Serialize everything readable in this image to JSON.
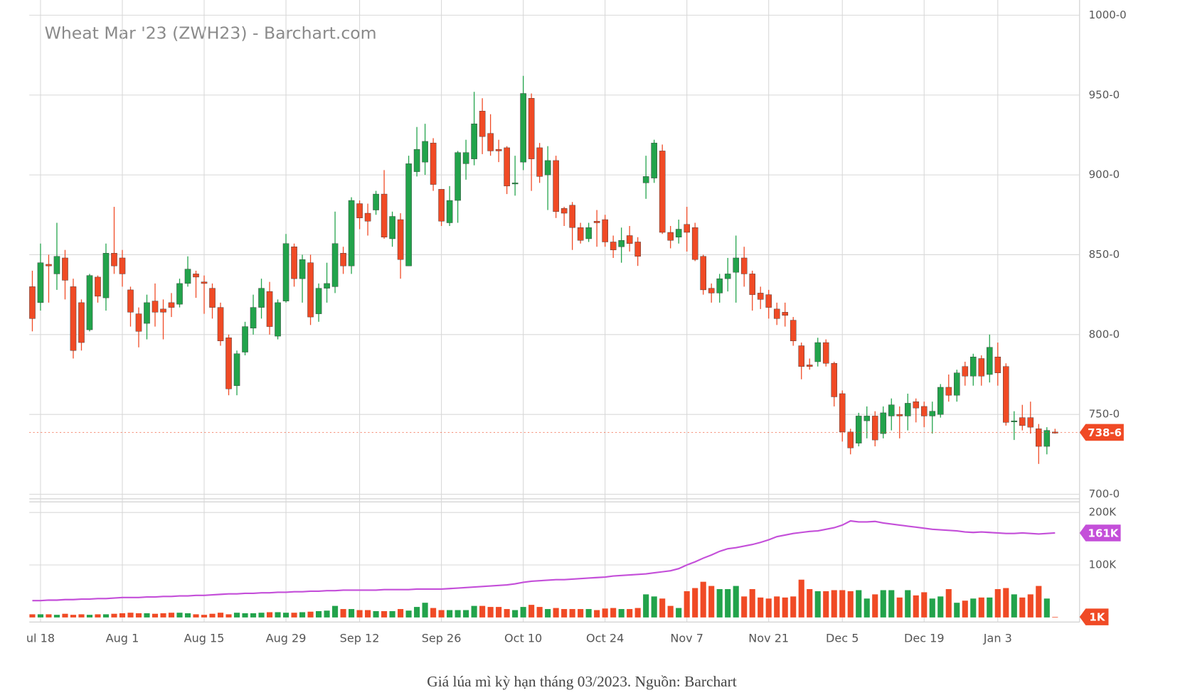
{
  "chart_data": [
    {
      "type": "candlestick",
      "title": "Wheat Mar '23 (ZWH23) - Barchart.com",
      "categories": [
        null,
        "ul 18",
        null,
        null,
        null,
        null,
        null,
        null,
        null,
        null,
        null,
        "Aug 1",
        null,
        null,
        null,
        null,
        null,
        null,
        null,
        null,
        null,
        "Aug 15",
        null,
        null,
        null,
        null,
        null,
        null,
        null,
        null,
        null,
        "Aug 29",
        null,
        null,
        null,
        null,
        null,
        null,
        null,
        null,
        "Sep 12",
        null,
        null,
        null,
        null,
        null,
        null,
        null,
        null,
        null,
        "Sep 26",
        null,
        null,
        null,
        null,
        null,
        null,
        null,
        null,
        null,
        "Oct 10",
        null,
        null,
        null,
        null,
        null,
        null,
        null,
        null,
        null,
        "Oct 24",
        null,
        null,
        null,
        null,
        null,
        null,
        null,
        null,
        null,
        "Nov 7",
        null,
        null,
        null,
        null,
        null,
        null,
        null,
        null,
        null,
        "Nov 21",
        null,
        null,
        null,
        null,
        null,
        null,
        null,
        null,
        "Dec 5",
        null,
        null,
        null,
        null,
        null,
        null,
        null,
        null,
        null,
        "Dec 19",
        null,
        null,
        null,
        null,
        null,
        null,
        null,
        null,
        "Jan 3",
        null,
        null,
        null,
        null,
        null,
        null,
        null
      ],
      "open": [
        830,
        820,
        844,
        838,
        848,
        830,
        820,
        803,
        836,
        823,
        851,
        848,
        828,
        813,
        807,
        821,
        816,
        820,
        819,
        832,
        838,
        833,
        829,
        817,
        798,
        768,
        789,
        804,
        817,
        827,
        799,
        821,
        855,
        835,
        845,
        813,
        829,
        830,
        851,
        843,
        882,
        876,
        878,
        888,
        860,
        872,
        843,
        902,
        908,
        920,
        891,
        870,
        884,
        907,
        910,
        940,
        926,
        916,
        917,
        895,
        908,
        948,
        917,
        900,
        909,
        879,
        881,
        867,
        860,
        871,
        872,
        858,
        855,
        862,
        858,
        895,
        898,
        915,
        864,
        861,
        869,
        867,
        849,
        829,
        826,
        835,
        839,
        848,
        838,
        826,
        825,
        816,
        814,
        809,
        793,
        781,
        783,
        795,
        782,
        763,
        739,
        732,
        746,
        749,
        738,
        749,
        750,
        749,
        758,
        755,
        749,
        750,
        767,
        762,
        780,
        774,
        785,
        775,
        786,
        780,
        746,
        748,
        748,
        741,
        730,
        739
      ],
      "high": [
        840,
        857,
        850,
        870,
        853,
        835,
        822,
        838,
        837,
        857,
        880,
        853,
        830,
        817,
        825,
        832,
        822,
        826,
        835,
        849,
        840,
        837,
        832,
        820,
        800,
        790,
        808,
        825,
        835,
        833,
        822,
        863,
        857,
        850,
        850,
        832,
        845,
        877,
        855,
        886,
        884,
        882,
        890,
        903,
        877,
        876,
        912,
        930,
        932,
        923,
        891,
        893,
        915,
        922,
        952,
        948,
        938,
        922,
        918,
        912,
        962,
        951,
        920,
        918,
        912,
        880,
        883,
        870,
        870,
        878,
        875,
        862,
        867,
        868,
        861,
        912,
        922,
        919,
        868,
        872,
        880,
        870,
        850,
        832,
        838,
        848,
        862,
        855,
        840,
        830,
        828,
        820,
        820,
        811,
        795,
        785,
        798,
        797,
        783,
        765,
        741,
        751,
        755,
        752,
        755,
        760,
        755,
        763,
        760,
        758,
        758,
        769,
        775,
        778,
        783,
        788,
        787,
        800,
        795,
        782,
        752,
        756,
        758,
        744,
        742,
        741
      ],
      "low": [
        802,
        815,
        820,
        828,
        822,
        785,
        790,
        802,
        820,
        815,
        838,
        830,
        805,
        792,
        797,
        805,
        797,
        811,
        817,
        830,
        823,
        813,
        810,
        793,
        762,
        762,
        787,
        800,
        810,
        800,
        797,
        820,
        830,
        820,
        806,
        808,
        820,
        826,
        838,
        838,
        866,
        862,
        875,
        860,
        855,
        835,
        843,
        899,
        900,
        890,
        868,
        868,
        870,
        897,
        906,
        913,
        912,
        908,
        888,
        887,
        903,
        890,
        895,
        878,
        873,
        868,
        853,
        857,
        858,
        855,
        855,
        848,
        845,
        852,
        843,
        885,
        895,
        863,
        854,
        857,
        852,
        846,
        825,
        820,
        820,
        827,
        820,
        830,
        815,
        816,
        810,
        806,
        805,
        793,
        772,
        778,
        780,
        780,
        755,
        733,
        725,
        730,
        735,
        730,
        735,
        740,
        735,
        740,
        745,
        742,
        738,
        748,
        758,
        758,
        768,
        768,
        768,
        770,
        768,
        743,
        734,
        740,
        738,
        719,
        725,
        738
      ],
      "close": [
        810,
        845,
        843,
        849,
        834,
        790,
        795,
        837,
        824,
        851,
        843,
        838,
        814,
        802,
        820,
        814,
        814,
        817,
        832,
        841,
        836,
        832,
        817,
        796,
        766,
        788,
        805,
        817,
        829,
        805,
        820,
        857,
        835,
        847,
        811,
        829,
        832,
        857,
        843,
        884,
        873,
        871,
        888,
        861,
        874,
        847,
        907,
        916,
        921,
        894,
        871,
        884,
        914,
        914,
        932,
        924,
        915,
        915,
        893,
        895,
        951,
        910,
        899,
        909,
        877,
        876,
        867,
        859,
        867,
        870,
        858,
        853,
        859,
        857,
        849,
        899,
        920,
        864,
        859,
        866,
        864,
        847,
        828,
        826,
        835,
        838,
        848,
        838,
        825,
        822,
        817,
        810,
        812,
        796,
        780,
        780,
        795,
        782,
        761,
        739,
        729,
        749,
        749,
        734,
        751,
        756,
        749,
        757,
        754,
        749,
        752,
        767,
        762,
        776,
        774,
        786,
        774,
        792,
        776,
        745,
        746,
        743,
        742,
        730,
        740,
        738.75
      ],
      "up_color": "#22a34b",
      "down_color": "#f04a25",
      "ylim": [
        700,
        1000
      ],
      "yticks": [
        {
          "value": 700,
          "label": "700-0"
        },
        {
          "value": 750,
          "label": "750-0"
        },
        {
          "value": 800,
          "label": "800-0"
        },
        {
          "value": 850,
          "label": "850-0"
        },
        {
          "value": 900,
          "label": "900-0"
        },
        {
          "value": 950,
          "label": "950-0"
        },
        {
          "value": 1000,
          "label": "1000-0"
        }
      ],
      "grid": true,
      "last_label": {
        "value": 738.75,
        "label": "738-6"
      }
    },
    {
      "type": "volume",
      "series": [
        {
          "kind": "bar",
          "values": [
            6000,
            6000,
            6000,
            5000,
            7000,
            5000,
            6000,
            5000,
            6000,
            6000,
            7000,
            8000,
            9000,
            8000,
            8000,
            7000,
            8000,
            9000,
            9000,
            8000,
            6000,
            5000,
            7000,
            9000,
            6000,
            9000,
            8000,
            8000,
            9000,
            10000,
            10000,
            9000,
            9000,
            10000,
            11000,
            12000,
            13000,
            22000,
            16000,
            16000,
            14000,
            14000,
            12000,
            12000,
            12000,
            16000,
            13000,
            20000,
            28000,
            18000,
            14000,
            14000,
            14000,
            14000,
            22000,
            22000,
            20000,
            20000,
            16000,
            14000,
            20000,
            24000,
            20000,
            16000,
            18000,
            16000,
            16000,
            16000,
            16000,
            14000,
            17000,
            18000,
            16000,
            16000,
            18000,
            44000,
            40000,
            36000,
            22000,
            18000,
            50000,
            56000,
            68000,
            60000,
            54000,
            54000,
            60000,
            40000,
            54000,
            38000,
            36000,
            40000,
            38000,
            40000,
            72000,
            54000,
            50000,
            50000,
            52000,
            52000,
            50000,
            52000,
            36000,
            44000,
            52000,
            52000,
            38000,
            52000,
            42000,
            48000,
            36000,
            40000,
            54000,
            28000,
            32000,
            36000,
            38000,
            38000,
            54000,
            56000,
            44000,
            38000,
            44000,
            60000,
            36000,
            1000
          ],
          "last_label": {
            "value": 1000,
            "label": "1K"
          },
          "color": "#f04a25"
        },
        {
          "kind": "line",
          "color": "#c44fd9",
          "values": [
            32000,
            32000,
            33000,
            33000,
            34000,
            34000,
            35000,
            35000,
            36000,
            36000,
            37000,
            38000,
            38000,
            38000,
            39000,
            39000,
            40000,
            40000,
            41000,
            41000,
            42000,
            42000,
            43000,
            44000,
            45000,
            45000,
            46000,
            46000,
            47000,
            47000,
            48000,
            48000,
            49000,
            49000,
            50000,
            50000,
            51000,
            51000,
            52000,
            52000,
            52000,
            52000,
            52000,
            53000,
            53000,
            53000,
            53000,
            54000,
            54000,
            54000,
            54000,
            55000,
            56000,
            57000,
            58000,
            59000,
            60000,
            61000,
            62000,
            64000,
            67000,
            69000,
            70000,
            71000,
            72000,
            72000,
            73000,
            74000,
            75000,
            76000,
            77000,
            79000,
            80000,
            81000,
            82000,
            83000,
            85000,
            87000,
            89000,
            93000,
            100000,
            106000,
            113000,
            119000,
            126000,
            131000,
            133000,
            136000,
            139000,
            143000,
            148000,
            154000,
            157000,
            160000,
            162000,
            164000,
            165000,
            168000,
            171000,
            176000,
            184000,
            182000,
            182000,
            183000,
            180000,
            178000,
            176000,
            174000,
            172000,
            170000,
            168000,
            167000,
            166000,
            165000,
            163000,
            162000,
            163000,
            162000,
            161000,
            160000,
            160000,
            161000,
            160000,
            159000,
            160000,
            161000
          ],
          "last_label": {
            "value": 161000,
            "label": "161K"
          }
        }
      ],
      "ylim": [
        0,
        200000
      ],
      "yticks": [
        {
          "value": 100000,
          "label": "100K"
        },
        {
          "value": 200000,
          "label": "200K"
        }
      ],
      "grid": true
    }
  ],
  "caption": "Giá lúa mì kỳ hạn tháng 03/2023. Nguồn: Barchart"
}
